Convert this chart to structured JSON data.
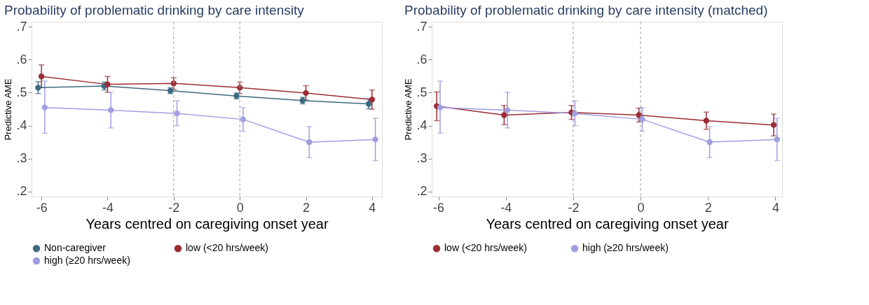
{
  "chart_data": [
    {
      "type": "line",
      "title": "Probability of problematic drinking by care intensity",
      "xlabel": "Years centred on caregiving onset year",
      "ylabel": "Predictive AME",
      "series": [
        {
          "name": "Non-caregiver",
          "color": "#3e6a80",
          "x": [
            -6.1,
            -4.1,
            -2.1,
            -0.1,
            1.9,
            3.9
          ],
          "values": [
            0.515,
            0.52,
            0.506,
            0.49,
            0.476,
            0.466
          ],
          "errors": [
            [
              0.497,
              0.533
            ],
            [
              0.508,
              0.532
            ],
            [
              0.497,
              0.515
            ],
            [
              0.481,
              0.499
            ],
            [
              0.466,
              0.486
            ],
            [
              0.451,
              0.481
            ]
          ]
        },
        {
          "name": "low (<20 hrs/week)",
          "color": "#9b2d35",
          "x": [
            -6,
            -4,
            -2,
            0,
            2,
            4
          ],
          "values": [
            0.549,
            0.525,
            0.528,
            0.515,
            0.499,
            0.479
          ],
          "errors": [
            [
              0.515,
              0.584
            ],
            [
              0.501,
              0.549
            ],
            [
              0.51,
              0.545
            ],
            [
              0.497,
              0.532
            ],
            [
              0.477,
              0.521
            ],
            [
              0.45,
              0.508
            ]
          ]
        },
        {
          "name": "high (≥20 hrs/week)",
          "color": "#a09ee0",
          "x": [
            -5.9,
            -3.9,
            -1.9,
            0.1,
            2.1,
            4.1
          ],
          "values": [
            0.455,
            0.447,
            0.437,
            0.419,
            0.35,
            0.358
          ],
          "errors": [
            [
              0.377,
              0.535
            ],
            [
              0.393,
              0.501
            ],
            [
              0.4,
              0.475
            ],
            [
              0.383,
              0.455
            ],
            [
              0.303,
              0.397
            ],
            [
              0.294,
              0.422
            ]
          ]
        }
      ],
      "xlim": [
        -6.3,
        4.3
      ],
      "xticks": [
        -6,
        -4,
        -2,
        0,
        2,
        4
      ],
      "ylim": [
        0.185,
        0.715
      ],
      "yticks": [
        {
          "value": 0.2,
          "label": ".2"
        },
        {
          "value": 0.3,
          "label": ".3"
        },
        {
          "value": 0.4,
          "label": ".4"
        },
        {
          "value": 0.5,
          "label": ".5"
        },
        {
          "value": 0.6,
          "label": ".6"
        },
        {
          "value": 0.7,
          "label": ".7"
        }
      ],
      "ref_lines": [
        {
          "axis": "x",
          "value": -2,
          "color": "#a0a0a0",
          "line_style": "dashed"
        },
        {
          "axis": "x",
          "value": 0,
          "color": "#a0a0a0",
          "line_style": "dashed"
        }
      ],
      "grid": "y",
      "legend": "bottom",
      "marker": "circle",
      "line_style": "solid"
    },
    {
      "type": "line",
      "title": "Probability of problematic drinking by care intensity (matched)",
      "xlabel": "Years centred on caregiving onset year",
      "ylabel": "Predictive AME",
      "series": [
        {
          "name": "low (<20 hrs/week)",
          "color": "#9b2d35",
          "x": [
            -6.05,
            -4.05,
            -2.05,
            -0.05,
            1.95,
            3.95
          ],
          "values": [
            0.459,
            0.432,
            0.44,
            0.432,
            0.415,
            0.402
          ],
          "errors": [
            [
              0.415,
              0.502
            ],
            [
              0.403,
              0.461
            ],
            [
              0.419,
              0.461
            ],
            [
              0.411,
              0.453
            ],
            [
              0.389,
              0.441
            ],
            [
              0.369,
              0.435
            ]
          ]
        },
        {
          "name": "high (≥20 hrs/week)",
          "color": "#a09ee0",
          "x": [
            -5.95,
            -3.95,
            -1.95,
            0.05,
            2.05,
            4.05
          ],
          "values": [
            0.455,
            0.447,
            0.437,
            0.419,
            0.35,
            0.358
          ],
          "errors": [
            [
              0.377,
              0.535
            ],
            [
              0.393,
              0.501
            ],
            [
              0.4,
              0.475
            ],
            [
              0.383,
              0.455
            ],
            [
              0.303,
              0.397
            ],
            [
              0.294,
              0.422
            ]
          ]
        }
      ],
      "xlim": [
        -6.2,
        4.2
      ],
      "xticks": [
        -6,
        -4,
        -2,
        0,
        2,
        4
      ],
      "ylim": [
        0.185,
        0.715
      ],
      "yticks": [
        {
          "value": 0.2,
          "label": ".2"
        },
        {
          "value": 0.3,
          "label": ".3"
        },
        {
          "value": 0.4,
          "label": ".4"
        },
        {
          "value": 0.5,
          "label": ".5"
        },
        {
          "value": 0.6,
          "label": ".6"
        },
        {
          "value": 0.7,
          "label": ".7"
        }
      ],
      "ref_lines": [
        {
          "axis": "x",
          "value": -2,
          "color": "#a0a0a0",
          "line_style": "dashed"
        },
        {
          "axis": "x",
          "value": 0,
          "color": "#a0a0a0",
          "line_style": "dashed"
        }
      ],
      "grid": "y",
      "legend": "bottom",
      "marker": "circle",
      "line_style": "solid"
    }
  ]
}
